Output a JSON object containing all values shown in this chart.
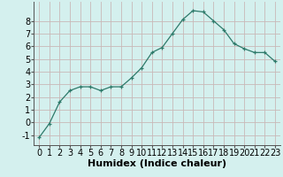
{
  "x": [
    0,
    1,
    2,
    3,
    4,
    5,
    6,
    7,
    8,
    9,
    10,
    11,
    12,
    13,
    14,
    15,
    16,
    17,
    18,
    19,
    20,
    21,
    22,
    23
  ],
  "y": [
    -1.2,
    -0.1,
    1.6,
    2.5,
    2.8,
    2.8,
    2.5,
    2.8,
    2.8,
    3.5,
    4.3,
    5.5,
    5.9,
    7.0,
    8.1,
    8.8,
    8.7,
    8.0,
    7.3,
    6.2,
    5.8,
    5.5,
    5.5,
    4.8
  ],
  "xlabel": "Humidex (Indice chaleur)",
  "ylim": [
    -1.8,
    9.5
  ],
  "xlim": [
    -0.5,
    23.5
  ],
  "yticks": [
    -1,
    0,
    1,
    2,
    3,
    4,
    5,
    6,
    7,
    8
  ],
  "xticks": [
    0,
    1,
    2,
    3,
    4,
    5,
    6,
    7,
    8,
    9,
    10,
    11,
    12,
    13,
    14,
    15,
    16,
    17,
    18,
    19,
    20,
    21,
    22,
    23
  ],
  "line_color": "#2d7a6a",
  "bg_color": "#d4f0ee",
  "grid_color_major": "#c9b8b8",
  "xlabel_fontsize": 8,
  "tick_fontsize": 7
}
